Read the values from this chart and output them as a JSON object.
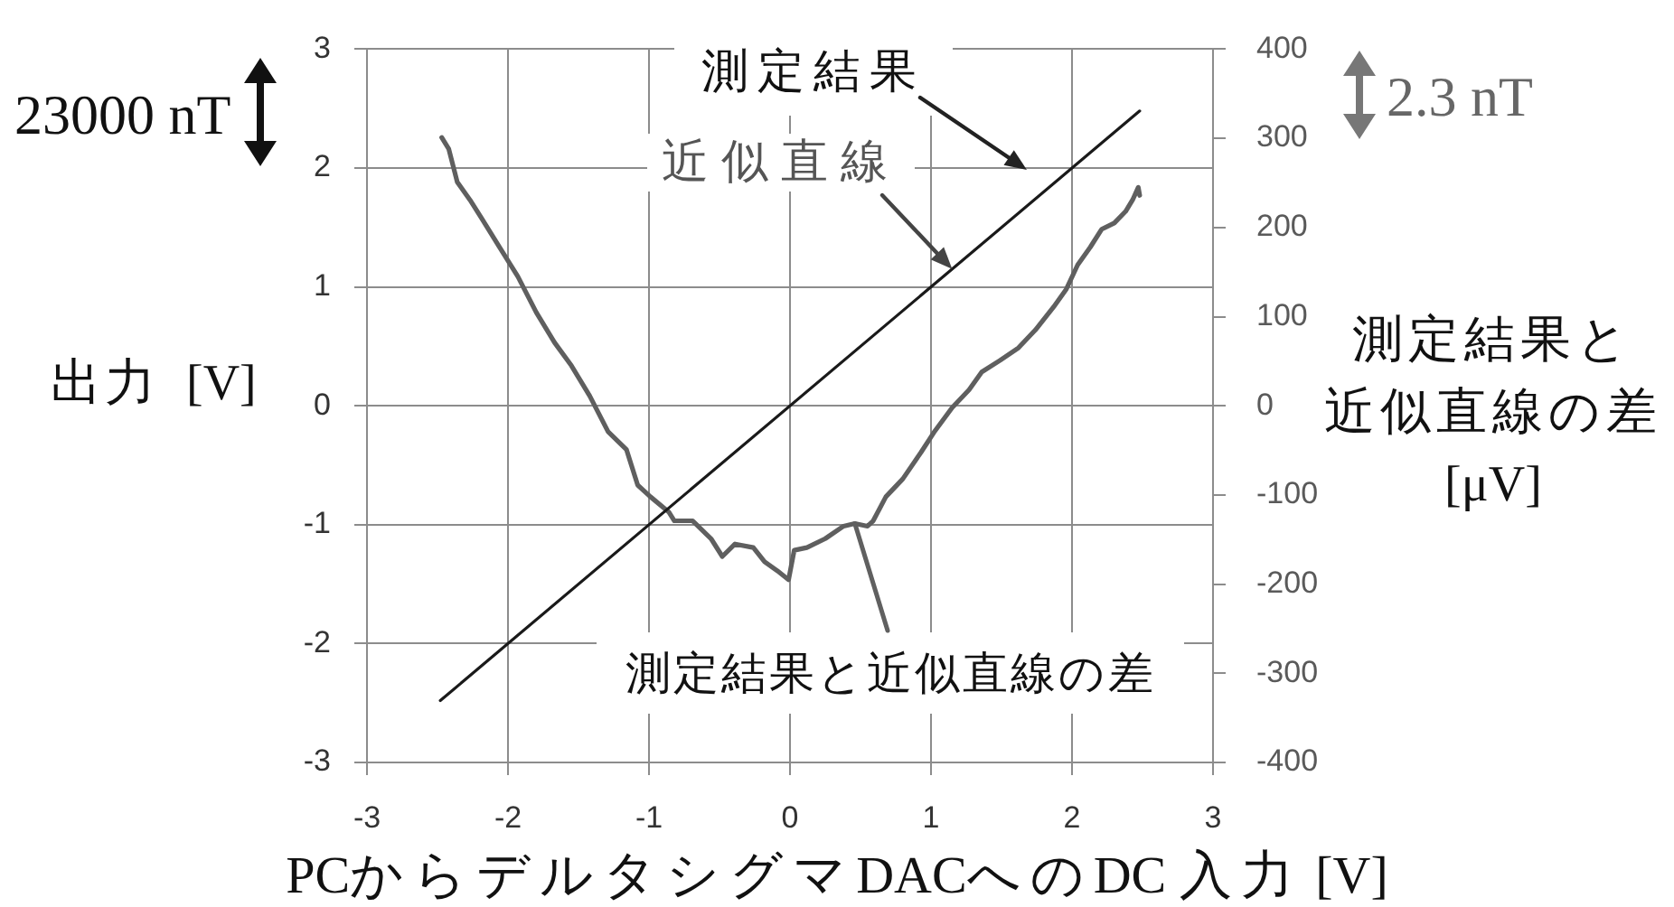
{
  "chart_data": {
    "type": "line",
    "xlabel": "PCからデルタシグマDACへのDC 入力 [V]",
    "ylabel": "出力 [V]",
    "y2label": "測定結果と近似直線の差 [μV]",
    "annotations": [
      "測定結果",
      {
        "text": "近似直線",
        "x": 1.15,
        "y": 1.15
      },
      "23000 nT",
      "2.3 nT"
    ],
    "series": [
      {
        "color": "#1a1a1a",
        "x": [
          -2.48,
          2.48
        ],
        "values": [
          -2.48,
          2.48
        ]
      },
      {
        "name": "測定結果と近似直線の差",
        "color": "#5f5f5f",
        "axis": "y2",
        "x": [
          -2.47,
          -2.42,
          -2.36,
          -2.27,
          -2.19,
          -2.06,
          -1.93,
          -1.8,
          -1.67,
          -1.55,
          -1.42,
          -1.29,
          -1.16,
          -1.08,
          -0.99,
          -0.86,
          -0.82,
          -0.69,
          -0.56,
          -0.48,
          -0.39,
          -0.26,
          -0.18,
          -0.09,
          -0.01,
          0.03,
          0.12,
          0.25,
          0.38,
          0.46,
          0.55,
          0.59,
          0.68,
          0.8,
          0.93,
          1.02,
          1.15,
          1.27,
          1.36,
          1.49,
          1.62,
          1.74,
          1.87,
          1.96,
          2.04,
          2.13,
          2.21,
          2.3,
          2.38,
          2.43,
          2.47,
          2.48
        ],
        "values": [
          301,
          288,
          251,
          231,
          211,
          178,
          145,
          105,
          71,
          45,
          11,
          -29,
          -49,
          -89,
          -102,
          -119,
          -129,
          -129,
          -149,
          -169,
          -155,
          -159,
          -175,
          -185,
          -195,
          -162,
          -159,
          -149,
          -135,
          -132,
          -135,
          -129,
          -102,
          -82,
          -52,
          -30,
          -2,
          18,
          38,
          51,
          65,
          85,
          111,
          131,
          158,
          178,
          198,
          205,
          218,
          231,
          245,
          236
        ]
      }
    ],
    "xlim": [
      -3,
      3
    ],
    "xticks": [
      -3,
      -2,
      -1,
      0,
      1,
      2,
      3
    ],
    "ylim": [
      -3,
      3
    ],
    "yticks": [
      -3,
      -2,
      -1,
      0,
      1,
      2,
      3
    ],
    "y2lim": [
      -400,
      400
    ],
    "y2ticks": [
      -400,
      -300,
      -200,
      -100,
      0,
      100,
      200,
      300,
      400
    ],
    "grid": true,
    "marker": "none"
  }
}
